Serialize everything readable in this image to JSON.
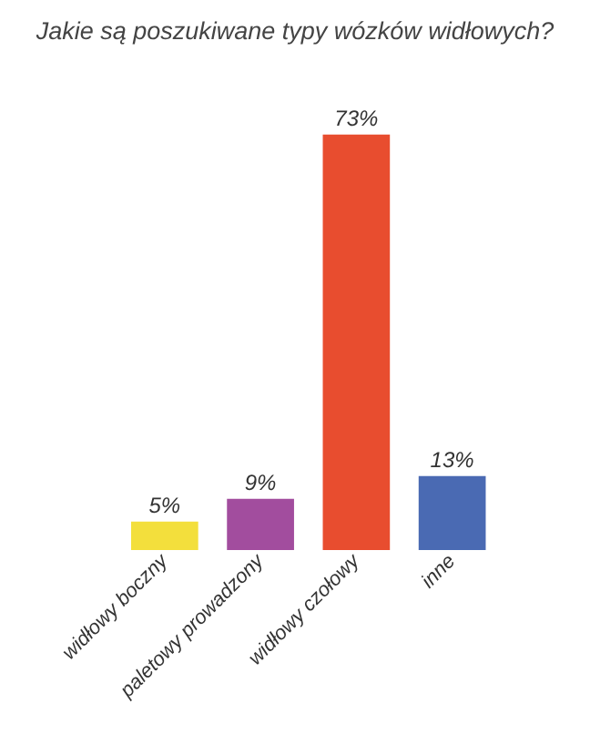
{
  "chart_data": {
    "type": "bar",
    "title": "Jakie są poszukiwane typy wózków widłowych?",
    "categories": [
      "widłowy boczny",
      "paletowy prowadzony",
      "widłowy czołowy",
      "inne"
    ],
    "values": [
      5,
      9,
      73,
      13
    ],
    "colors": [
      "#f3df3c",
      "#a24d9e",
      "#e84d2f",
      "#4a6ab3"
    ],
    "value_labels": [
      "5%",
      "9%",
      "73%",
      "13%"
    ]
  }
}
